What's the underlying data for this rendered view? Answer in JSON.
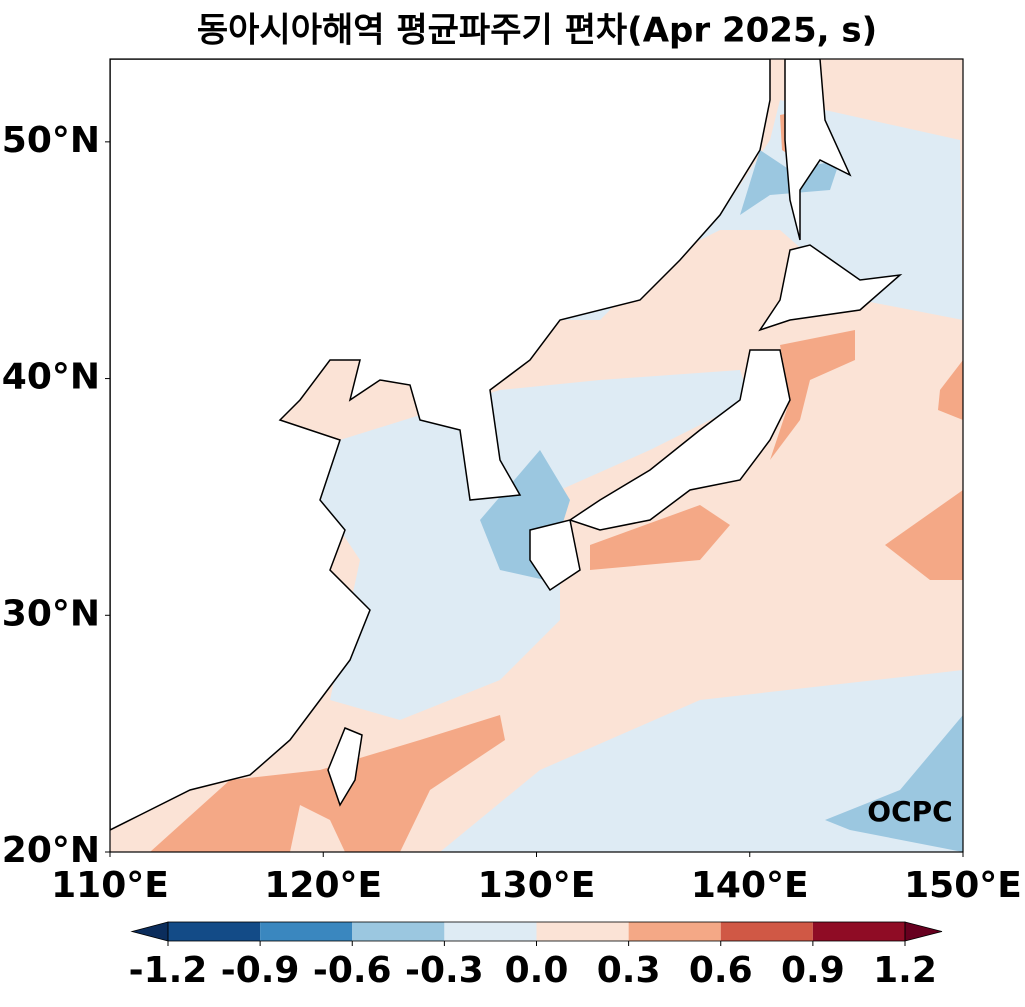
{
  "title": "동아시아해역 평균파주기 편차(Apr 2025, s)",
  "map": {
    "xlim": [
      110,
      150
    ],
    "ylim": [
      20,
      53.5
    ],
    "xticks": [
      {
        "value": 110,
        "label": "110°E"
      },
      {
        "value": 120,
        "label": "120°E"
      },
      {
        "value": 130,
        "label": "130°E"
      },
      {
        "value": 140,
        "label": "140°E"
      },
      {
        "value": 150,
        "label": "150°E"
      }
    ],
    "yticks": [
      {
        "value": 20,
        "label": "20°N"
      },
      {
        "value": 30,
        "label": "30°N"
      },
      {
        "value": 40,
        "label": "40°N"
      },
      {
        "value": 50,
        "label": "50°N"
      }
    ]
  },
  "colorbar": {
    "ticks": [
      -1.2,
      -0.9,
      -0.6,
      -0.3,
      {
        "value": 0,
        "label": "0.0"
      },
      0.3,
      0.6,
      0.9,
      1.2
    ],
    "colors": [
      "#134b87",
      "#3a87bf",
      "#9bc7e0",
      "#deebf4",
      "#fbe3d6",
      "#f4a886",
      "#d05845",
      "#8f0c25"
    ],
    "extend_colors": [
      "#0b2d5c",
      "#67001f"
    ]
  },
  "logo": "OCPC"
}
